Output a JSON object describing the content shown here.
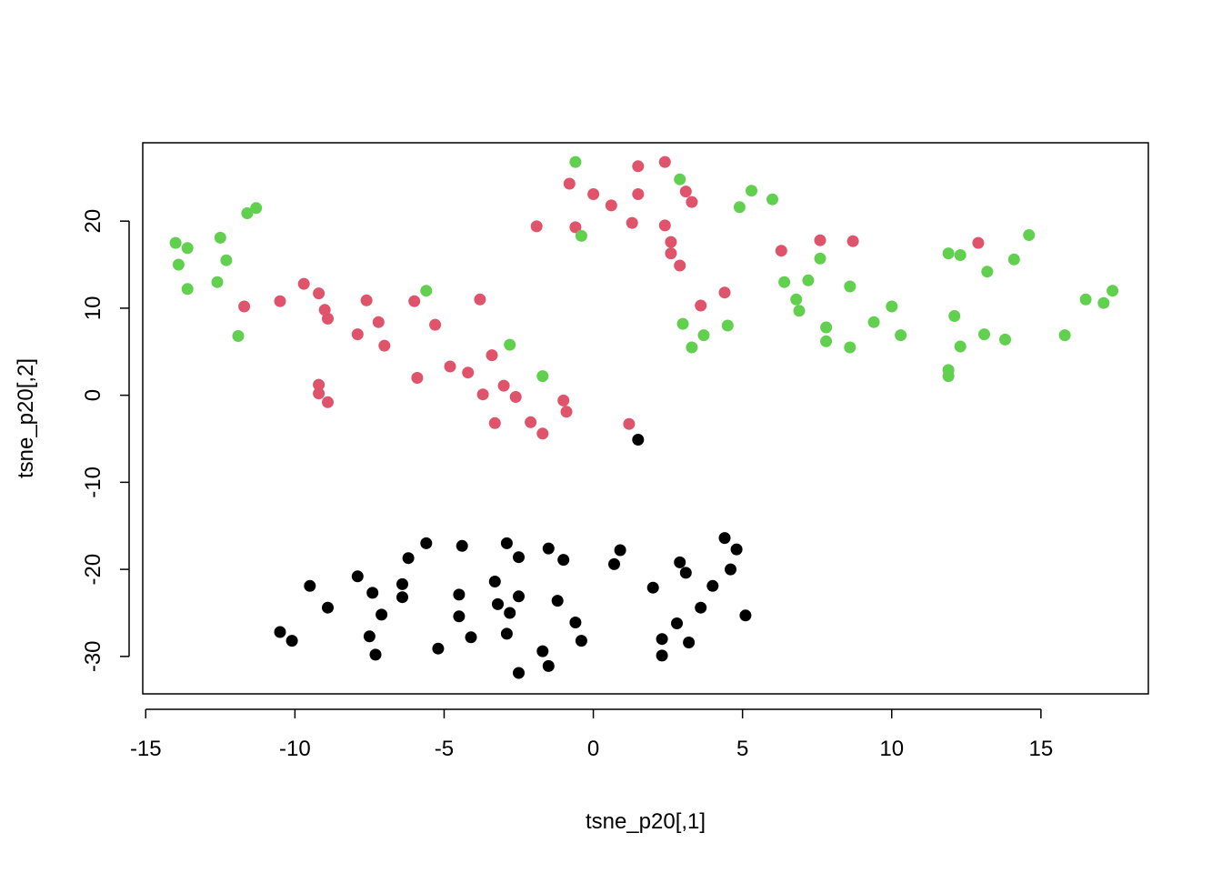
{
  "chart_data": {
    "type": "scatter",
    "title": "",
    "xlabel": "tsne_p20[,1]",
    "ylabel": "tsne_p20[,2]",
    "xlim": [
      -15.1,
      18.6
    ],
    "ylim": [
      -34.3,
      29.0
    ],
    "xticks": [
      -15,
      -10,
      -5,
      0,
      5,
      10,
      15
    ],
    "yticks": [
      -30,
      -20,
      -10,
      0,
      10,
      20
    ],
    "xtick_labels": [
      "-15",
      "-10",
      "-5",
      "0",
      "5",
      "10",
      "15"
    ],
    "ytick_labels": [
      "-30",
      "-20",
      "-10",
      "0",
      "10",
      "20"
    ],
    "grid": false,
    "legend": "none",
    "series": [
      {
        "color": "#000000",
        "points": [
          [
            1.5,
            -5.1
          ],
          [
            4.4,
            -16.4
          ],
          [
            4.8,
            -17.7
          ],
          [
            0.9,
            -17.8
          ],
          [
            -1.5,
            -17.6
          ],
          [
            -2.9,
            -17.0
          ],
          [
            -5.6,
            -17.0
          ],
          [
            -4.4,
            -17.3
          ],
          [
            -2.5,
            -18.6
          ],
          [
            -6.2,
            -18.7
          ],
          [
            -1.0,
            -18.9
          ],
          [
            0.7,
            -19.4
          ],
          [
            2.9,
            -19.2
          ],
          [
            4.6,
            -20.0
          ],
          [
            3.1,
            -20.4
          ],
          [
            -3.3,
            -21.4
          ],
          [
            -7.9,
            -20.8
          ],
          [
            -9.5,
            -21.9
          ],
          [
            -6.4,
            -21.7
          ],
          [
            -7.4,
            -22.7
          ],
          [
            -6.4,
            -23.2
          ],
          [
            -4.5,
            -22.9
          ],
          [
            -2.5,
            -23.1
          ],
          [
            -1.2,
            -23.6
          ],
          [
            2.0,
            -22.1
          ],
          [
            4.0,
            -21.9
          ],
          [
            3.6,
            -24.4
          ],
          [
            -8.9,
            -24.4
          ],
          [
            -3.2,
            -24.0
          ],
          [
            -7.1,
            -25.2
          ],
          [
            -4.5,
            -25.4
          ],
          [
            -2.8,
            -25.0
          ],
          [
            5.1,
            -25.3
          ],
          [
            -0.6,
            -26.1
          ],
          [
            2.8,
            -26.2
          ],
          [
            -10.5,
            -27.2
          ],
          [
            -10.1,
            -28.2
          ],
          [
            -7.5,
            -27.7
          ],
          [
            -4.1,
            -27.8
          ],
          [
            -2.9,
            -27.4
          ],
          [
            -0.4,
            -28.2
          ],
          [
            2.3,
            -28.0
          ],
          [
            3.2,
            -28.4
          ],
          [
            -5.2,
            -29.1
          ],
          [
            -7.3,
            -29.8
          ],
          [
            -1.7,
            -29.4
          ],
          [
            2.3,
            -29.9
          ],
          [
            -2.5,
            -31.9
          ],
          [
            -1.5,
            -31.1
          ]
        ]
      },
      {
        "color": "#DF536B",
        "points": [
          [
            2.4,
            26.8
          ],
          [
            1.5,
            26.3
          ],
          [
            -0.8,
            24.3
          ],
          [
            0.0,
            23.1
          ],
          [
            1.5,
            23.1
          ],
          [
            3.1,
            23.4
          ],
          [
            0.6,
            21.8
          ],
          [
            3.3,
            22.2
          ],
          [
            1.3,
            19.8
          ],
          [
            -1.9,
            19.4
          ],
          [
            -0.6,
            19.3
          ],
          [
            2.4,
            19.5
          ],
          [
            2.6,
            17.6
          ],
          [
            2.6,
            16.3
          ],
          [
            2.9,
            14.9
          ],
          [
            6.3,
            16.6
          ],
          [
            7.6,
            17.8
          ],
          [
            8.7,
            17.7
          ],
          [
            12.9,
            17.5
          ],
          [
            -9.7,
            12.8
          ],
          [
            -9.2,
            11.7
          ],
          [
            -10.5,
            10.8
          ],
          [
            -11.7,
            10.2
          ],
          [
            -7.6,
            10.9
          ],
          [
            -6.0,
            10.8
          ],
          [
            -3.8,
            11.0
          ],
          [
            -9.0,
            9.8
          ],
          [
            -8.9,
            8.8
          ],
          [
            -7.2,
            8.4
          ],
          [
            -5.3,
            8.1
          ],
          [
            -7.9,
            7.0
          ],
          [
            -7.0,
            5.7
          ],
          [
            3.6,
            10.3
          ],
          [
            4.4,
            11.8
          ],
          [
            -3.4,
            4.6
          ],
          [
            -5.9,
            2.0
          ],
          [
            -4.8,
            3.3
          ],
          [
            -4.2,
            2.6
          ],
          [
            -9.2,
            1.2
          ],
          [
            -9.2,
            0.2
          ],
          [
            -8.9,
            -0.8
          ],
          [
            -3.7,
            0.1
          ],
          [
            -3.0,
            1.1
          ],
          [
            -2.6,
            -0.2
          ],
          [
            -1.0,
            -0.6
          ],
          [
            -0.9,
            -1.9
          ],
          [
            -3.3,
            -3.2
          ],
          [
            -2.1,
            -3.1
          ],
          [
            -1.7,
            -4.4
          ],
          [
            1.2,
            -3.3
          ]
        ]
      },
      {
        "color": "#61D04F",
        "points": [
          [
            -0.6,
            26.8
          ],
          [
            2.9,
            24.8
          ],
          [
            5.3,
            23.5
          ],
          [
            6.0,
            22.5
          ],
          [
            4.9,
            21.6
          ],
          [
            -11.6,
            20.9
          ],
          [
            -11.3,
            21.5
          ],
          [
            -0.4,
            18.3
          ],
          [
            -14.0,
            17.5
          ],
          [
            -13.6,
            16.9
          ],
          [
            -12.5,
            18.1
          ],
          [
            -13.9,
            15.0
          ],
          [
            -12.3,
            15.5
          ],
          [
            -13.6,
            12.2
          ],
          [
            -12.6,
            13.0
          ],
          [
            -5.6,
            12.0
          ],
          [
            -11.9,
            6.8
          ],
          [
            -2.8,
            5.8
          ],
          [
            -1.7,
            2.2
          ],
          [
            3.0,
            8.2
          ],
          [
            4.5,
            8.0
          ],
          [
            3.7,
            6.9
          ],
          [
            3.3,
            5.5
          ],
          [
            6.4,
            13.0
          ],
          [
            6.8,
            11.0
          ],
          [
            7.2,
            13.2
          ],
          [
            6.9,
            9.7
          ],
          [
            7.6,
            15.7
          ],
          [
            7.8,
            7.8
          ],
          [
            7.8,
            6.2
          ],
          [
            8.6,
            12.5
          ],
          [
            8.6,
            5.5
          ],
          [
            9.4,
            8.4
          ],
          [
            10.0,
            10.2
          ],
          [
            10.3,
            6.9
          ],
          [
            11.9,
            16.3
          ],
          [
            12.3,
            16.1
          ],
          [
            11.9,
            2.2
          ],
          [
            11.9,
            2.9
          ],
          [
            12.1,
            9.1
          ],
          [
            12.3,
            5.6
          ],
          [
            13.1,
            7.0
          ],
          [
            13.2,
            14.2
          ],
          [
            13.8,
            6.4
          ],
          [
            14.1,
            15.6
          ],
          [
            14.6,
            18.4
          ],
          [
            15.8,
            6.9
          ],
          [
            16.5,
            11.0
          ],
          [
            17.1,
            10.6
          ],
          [
            17.4,
            12.0
          ]
        ]
      }
    ]
  }
}
